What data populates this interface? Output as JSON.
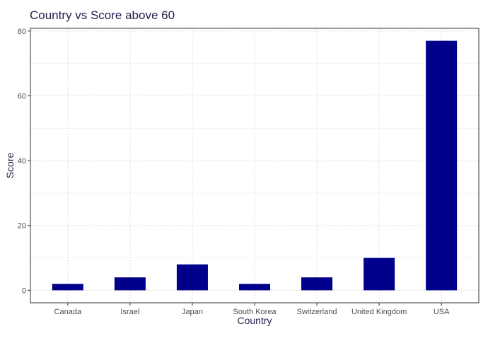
{
  "chart_data": {
    "type": "bar",
    "title": "Country vs Score above 60",
    "xlabel": "Country",
    "ylabel": "Score",
    "categories": [
      "Canada",
      "Israel",
      "Japan",
      "South Korea",
      "Switzerland",
      "United Kingdom",
      "USA"
    ],
    "values": [
      2,
      4,
      8,
      2,
      4,
      10,
      77
    ],
    "ylim": [
      -3.85,
      80.85
    ],
    "yticks": [
      0,
      20,
      40,
      60,
      80
    ],
    "grid": true,
    "bar_color": "#00008b",
    "legend": "none"
  }
}
